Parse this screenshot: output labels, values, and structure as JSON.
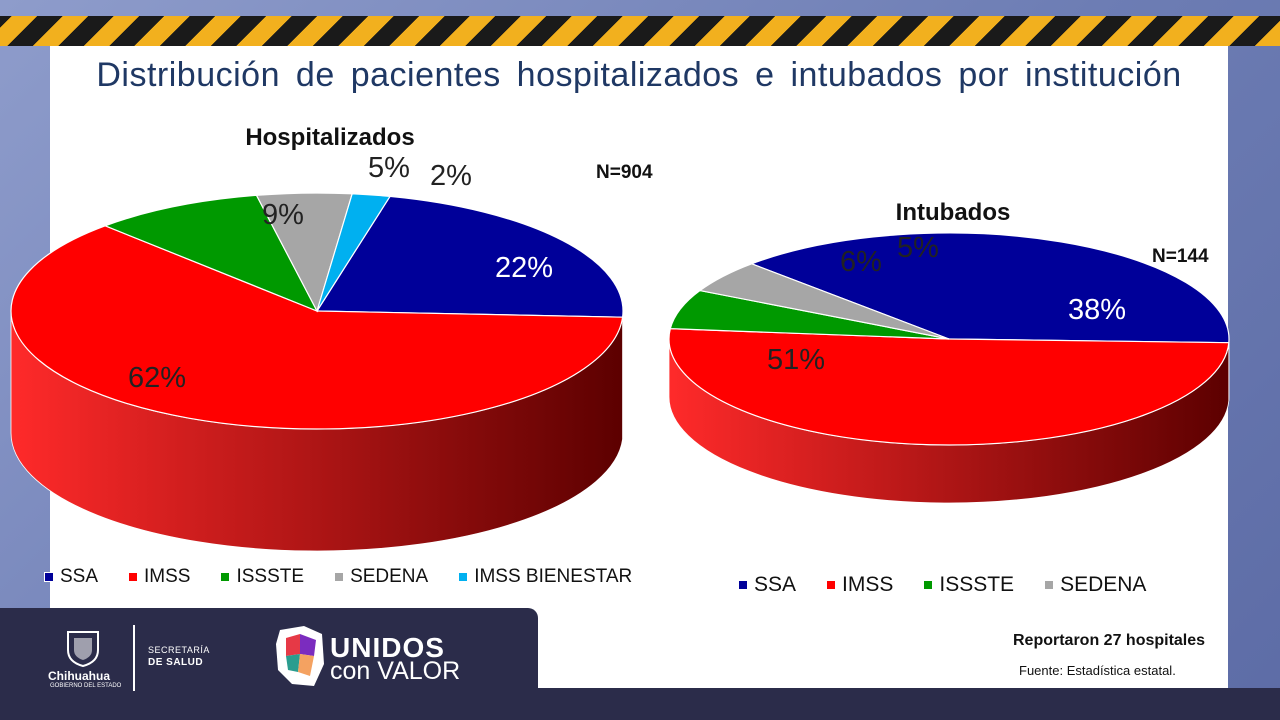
{
  "title": "Distribución de pacientes hospitalizados e intubados por institución",
  "chart_data": [
    {
      "type": "pie",
      "title": "Hospitalizados",
      "n_label": "N=904",
      "categories": [
        "SSA",
        "IMSS",
        "ISSSTE",
        "SEDENA",
        "IMSS BIENESTAR"
      ],
      "values": [
        22,
        62,
        9,
        5,
        2
      ],
      "labels": [
        "22%",
        "62%",
        "9%",
        "5%",
        "2%"
      ],
      "colors": [
        "#000099",
        "#ff0000",
        "#009900",
        "#a6a6a6",
        "#00b0f0"
      ],
      "legend_position": "bottom"
    },
    {
      "type": "pie",
      "title": "Intubados",
      "n_label": "N=144",
      "categories": [
        "SSA",
        "IMSS",
        "ISSSTE",
        "SEDENA"
      ],
      "values": [
        38,
        51,
        6,
        5
      ],
      "labels": [
        "38%",
        "51%",
        "6%",
        "5%"
      ],
      "colors": [
        "#000099",
        "#ff0000",
        "#009900",
        "#a6a6a6"
      ],
      "legend_position": "bottom"
    }
  ],
  "footer": {
    "state_name": "Chihuahua",
    "state_sub": "GOBIERNO DEL ESTADO",
    "dept_line1": "SECRETARÍA",
    "dept_line2": "DE SALUD",
    "brand_line1": "UNIDOS",
    "brand_line2": "con VALOR",
    "hospitals_note": "Reportaron 27 hospitales",
    "source_note": "Fuente: Estadística estatal."
  }
}
